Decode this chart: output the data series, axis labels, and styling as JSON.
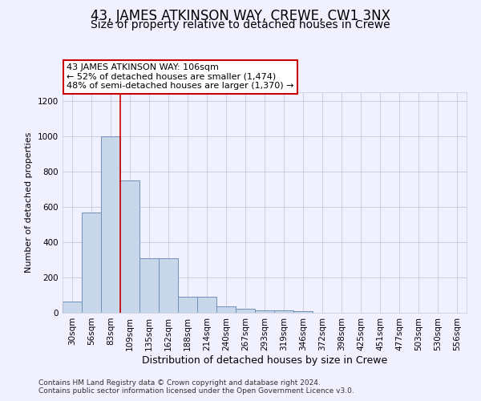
{
  "title": "43, JAMES ATKINSON WAY, CREWE, CW1 3NX",
  "subtitle": "Size of property relative to detached houses in Crewe",
  "xlabel": "Distribution of detached houses by size in Crewe",
  "ylabel": "Number of detached properties",
  "categories": [
    "30sqm",
    "56sqm",
    "83sqm",
    "109sqm",
    "135sqm",
    "162sqm",
    "188sqm",
    "214sqm",
    "240sqm",
    "267sqm",
    "293sqm",
    "319sqm",
    "346sqm",
    "372sqm",
    "398sqm",
    "425sqm",
    "451sqm",
    "477sqm",
    "503sqm",
    "530sqm",
    "556sqm"
  ],
  "values": [
    65,
    570,
    1000,
    750,
    310,
    310,
    90,
    90,
    35,
    25,
    15,
    12,
    10,
    0,
    0,
    0,
    0,
    0,
    0,
    0,
    0
  ],
  "bar_color": "#c8d8ea",
  "bar_edge_color": "#7090b8",
  "highlight_line_index": 3,
  "annotation_text": "43 JAMES ATKINSON WAY: 106sqm\n← 52% of detached houses are smaller (1,474)\n48% of semi-detached houses are larger (1,370) →",
  "annotation_box_facecolor": "#ffffff",
  "annotation_box_edgecolor": "#cc0000",
  "ylim": [
    0,
    1250
  ],
  "yticks": [
    0,
    200,
    400,
    600,
    800,
    1000,
    1200
  ],
  "background_color": "#f0f0ff",
  "grid_color": "#c8c8dc",
  "footer_text": "Contains HM Land Registry data © Crown copyright and database right 2024.\nContains public sector information licensed under the Open Government Licence v3.0.",
  "title_fontsize": 12,
  "subtitle_fontsize": 10,
  "xlabel_fontsize": 9,
  "ylabel_fontsize": 8,
  "tick_fontsize": 7.5,
  "annotation_fontsize": 8,
  "footer_fontsize": 6.5
}
